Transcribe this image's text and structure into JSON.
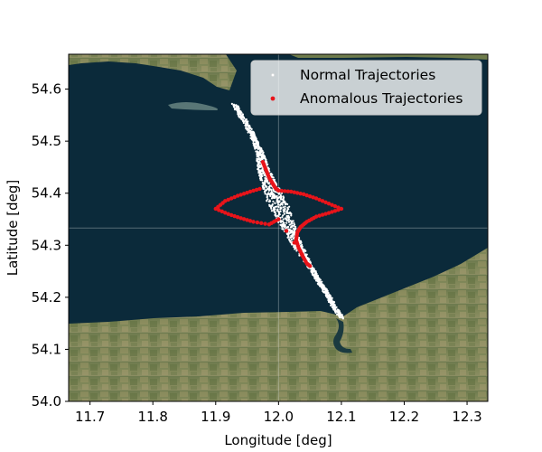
{
  "chart_data": {
    "type": "scatter",
    "xlabel": "Longitude [deg]",
    "ylabel": "Latitude [deg]",
    "xlim": [
      11.666,
      12.333
    ],
    "ylim": [
      54.0,
      54.667
    ],
    "xticks": [
      "11.7",
      "11.8",
      "11.9",
      "12.0",
      "12.1",
      "12.2",
      "12.3"
    ],
    "yticks": [
      "54.0",
      "54.1",
      "54.2",
      "54.3",
      "54.4",
      "54.5",
      "54.6"
    ],
    "grid": true,
    "legend_position": "top-right",
    "background": "satellite map: sea (top) and land (bottom)",
    "series": [
      {
        "name": "Normal Trajectories",
        "color": "#ffffff",
        "marker": "small-dot",
        "description_points": [
          [
            11.93,
            54.57
          ],
          [
            11.955,
            54.52
          ],
          [
            11.97,
            54.48
          ],
          [
            11.975,
            54.45
          ],
          [
            11.985,
            54.42
          ],
          [
            11.995,
            54.39
          ],
          [
            12.01,
            54.35
          ],
          [
            12.025,
            54.31
          ],
          [
            12.04,
            54.28
          ],
          [
            12.06,
            54.24
          ],
          [
            12.08,
            54.2
          ],
          [
            12.1,
            54.16
          ]
        ]
      },
      {
        "name": "Anomalous Trajectories",
        "color": "#e8141a",
        "marker": "dot",
        "description_points": [
          [
            11.975,
            54.46
          ],
          [
            11.98,
            54.445
          ],
          [
            11.985,
            54.43
          ],
          [
            11.99,
            54.42
          ],
          [
            11.995,
            54.41
          ],
          [
            12.0,
            54.405
          ],
          [
            12.02,
            54.403
          ],
          [
            12.04,
            54.398
          ],
          [
            12.06,
            54.39
          ],
          [
            12.08,
            54.38
          ],
          [
            12.1,
            54.37
          ],
          [
            12.08,
            54.362
          ],
          [
            12.06,
            54.355
          ],
          [
            12.045,
            54.345
          ],
          [
            12.035,
            54.335
          ],
          [
            12.03,
            54.325
          ],
          [
            12.028,
            54.31
          ],
          [
            12.032,
            54.295
          ],
          [
            12.038,
            54.28
          ],
          [
            12.045,
            54.265
          ],
          [
            12.05,
            54.26
          ],
          [
            12.0,
            54.35
          ],
          [
            11.985,
            54.34
          ],
          [
            11.96,
            54.345
          ],
          [
            11.94,
            54.352
          ],
          [
            11.92,
            54.36
          ],
          [
            11.9,
            54.37
          ],
          [
            11.915,
            54.385
          ],
          [
            11.935,
            54.395
          ],
          [
            11.955,
            54.403
          ],
          [
            11.975,
            54.41
          ]
        ]
      }
    ]
  }
}
